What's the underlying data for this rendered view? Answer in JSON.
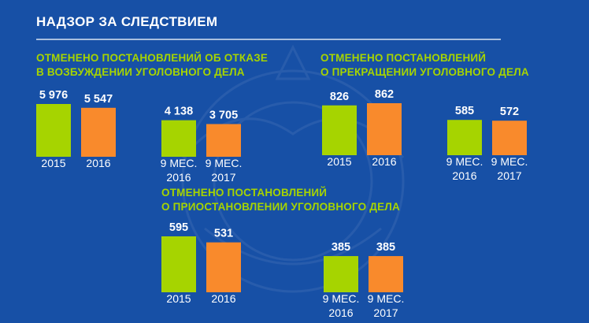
{
  "header": {
    "title": "НАДЗОР ЗА СЛЕДСТВИЕМ"
  },
  "colors": {
    "background": "#1750a6",
    "green": "#a6d400",
    "orange": "#f98a2c",
    "heading": "#a6d400",
    "text": "#ffffff"
  },
  "chart_data": [
    {
      "type": "bar",
      "title_lines": [
        "ОТМЕНЕНО ПОСТАНОВЛЕНИЙ ОБ ОТКАЗЕ",
        "В ВОЗБУЖДЕНИИ УГОЛОВНОГО ДЕЛА"
      ],
      "pairs": [
        {
          "bars": [
            {
              "category": [
                "2015"
              ],
              "value": 5976,
              "label": "5 976",
              "color": "green"
            },
            {
              "category": [
                "2016"
              ],
              "value": 5547,
              "label": "5 547",
              "color": "orange"
            }
          ]
        },
        {
          "bars": [
            {
              "category": [
                "9 МЕС.",
                "2016"
              ],
              "value": 4138,
              "label": "4 138",
              "color": "green"
            },
            {
              "category": [
                "9 МЕС.",
                "2017"
              ],
              "value": 3705,
              "label": "3 705",
              "color": "orange"
            }
          ]
        }
      ]
    },
    {
      "type": "bar",
      "title_lines": [
        "ОТМЕНЕНО ПОСТАНОВЛЕНИЙ",
        "О ПРЕКРАЩЕНИИ УГОЛОВНОГО ДЕЛА"
      ],
      "pairs": [
        {
          "bars": [
            {
              "category": [
                "2015"
              ],
              "value": 826,
              "label": "826",
              "color": "green"
            },
            {
              "category": [
                "2016"
              ],
              "value": 862,
              "label": "862",
              "color": "orange"
            }
          ]
        },
        {
          "bars": [
            {
              "category": [
                "9 МЕС.",
                "2016"
              ],
              "value": 585,
              "label": "585",
              "color": "green"
            },
            {
              "category": [
                "9 МЕС.",
                "2017"
              ],
              "value": 572,
              "label": "572",
              "color": "orange"
            }
          ]
        }
      ]
    },
    {
      "type": "bar",
      "title_lines": [
        "ОТМЕНЕНО ПОСТАНОВЛЕНИЙ",
        "О ПРИОСТАНОВЛЕНИИ УГОЛОВНОГО ДЕЛА"
      ],
      "pairs": [
        {
          "bars": [
            {
              "category": [
                "2015"
              ],
              "value": 595,
              "label": "595",
              "color": "green"
            },
            {
              "category": [
                "2016"
              ],
              "value": 531,
              "label": "531",
              "color": "orange"
            }
          ]
        },
        {
          "bars": [
            {
              "category": [
                "9 МЕС.",
                "2016"
              ],
              "value": 385,
              "label": "385",
              "color": "green"
            },
            {
              "category": [
                "9 МЕС.",
                "2017"
              ],
              "value": 385,
              "label": "385",
              "color": "orange"
            }
          ]
        }
      ]
    }
  ]
}
